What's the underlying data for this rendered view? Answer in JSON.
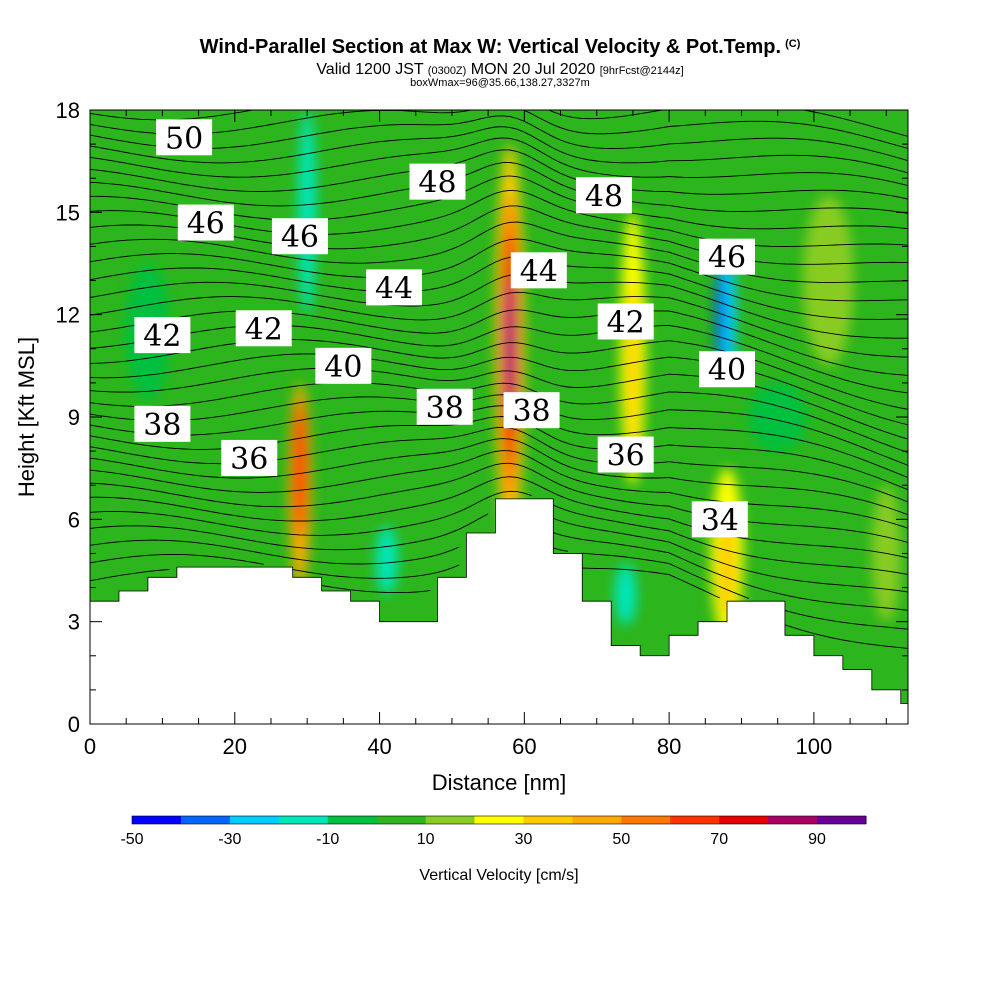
{
  "title": "Wind-Parallel Section at Max W: Vertical Velocity & Pot.Temp.",
  "title_mark": "(C)",
  "subtitle": {
    "valid_prefix": "Valid 1200 JST",
    "utc": "(0300Z)",
    "date": "MON 20 Jul 2020",
    "forecast": "[9hrFcst@2144z]"
  },
  "subtitle2": "boxWmax=96@35.66,138.27,3327m",
  "chart_data": {
    "type": "heatmap",
    "xlabel": "Distance [nm]",
    "ylabel": "Height [Kft MSL]",
    "xlim": [
      0,
      113
    ],
    "ylim": [
      0,
      18
    ],
    "x_ticks": [
      0,
      20,
      40,
      60,
      80,
      100
    ],
    "y_ticks": [
      0,
      3,
      6,
      9,
      12,
      15,
      18
    ],
    "colorbar": {
      "label": "Vertical Velocity [cm/s]",
      "levels": [
        -50,
        -40,
        -30,
        -20,
        -10,
        0,
        10,
        20,
        30,
        40,
        50,
        60,
        70,
        80,
        90,
        100
      ],
      "tick_labels": [
        -50,
        -30,
        -10,
        10,
        30,
        50,
        70,
        90
      ],
      "colors": [
        "#0000ff",
        "#0066ff",
        "#00ccff",
        "#00e6bb",
        "#00c040",
        "#2cb51c",
        "#88cc22",
        "#ffff00",
        "#ffcc00",
        "#ffaa00",
        "#ff7700",
        "#ff3300",
        "#e60000",
        "#aa0066",
        "#660099"
      ]
    },
    "terrain_kft": [
      [
        0,
        3.6
      ],
      [
        4,
        3.9
      ],
      [
        8,
        4.3
      ],
      [
        12,
        4.6
      ],
      [
        16,
        4.6
      ],
      [
        20,
        4.6
      ],
      [
        24,
        4.6
      ],
      [
        28,
        4.3
      ],
      [
        32,
        3.9
      ],
      [
        36,
        3.6
      ],
      [
        40,
        3.0
      ],
      [
        44,
        3.0
      ],
      [
        48,
        4.3
      ],
      [
        52,
        5.6
      ],
      [
        56,
        6.6
      ],
      [
        60,
        6.6
      ],
      [
        64,
        5.0
      ],
      [
        68,
        3.6
      ],
      [
        72,
        2.3
      ],
      [
        76,
        2.0
      ],
      [
        80,
        2.6
      ],
      [
        84,
        3.0
      ],
      [
        88,
        3.6
      ],
      [
        92,
        3.6
      ],
      [
        96,
        2.6
      ],
      [
        100,
        2.0
      ],
      [
        104,
        1.6
      ],
      [
        108,
        1.0
      ],
      [
        112,
        0.6
      ],
      [
        113,
        0.4
      ]
    ],
    "vertical_velocity_cells": [
      {
        "x": 29,
        "y": 7.0,
        "dx": 3,
        "dy": 6.0,
        "value": 40
      },
      {
        "x": 29,
        "y": 7.5,
        "dx": 1.8,
        "dy": 4.0,
        "value": 60
      },
      {
        "x": 58,
        "y": 11.0,
        "dx": 4,
        "dy": 12.0,
        "value": 30
      },
      {
        "x": 58,
        "y": 11.0,
        "dx": 2.8,
        "dy": 9.0,
        "value": 50
      },
      {
        "x": 58,
        "y": 11.0,
        "dx": 1.8,
        "dy": 7.0,
        "value": 70
      },
      {
        "x": 58,
        "y": 11.0,
        "dx": 0.9,
        "dy": 4.0,
        "value": 90
      },
      {
        "x": 75,
        "y": 11.0,
        "dx": 3.5,
        "dy": 8.0,
        "value": 20
      },
      {
        "x": 75,
        "y": 10.5,
        "dx": 1.6,
        "dy": 5.0,
        "value": 30
      },
      {
        "x": 88,
        "y": 5.0,
        "dx": 4.5,
        "dy": 5.0,
        "value": 20
      },
      {
        "x": 88,
        "y": 4.6,
        "dx": 2.5,
        "dy": 3.0,
        "value": 30
      },
      {
        "x": 88,
        "y": 12.0,
        "dx": 2.5,
        "dy": 4.0,
        "value": -30
      },
      {
        "x": 87,
        "y": 12.0,
        "dx": 1.0,
        "dy": 3.0,
        "value": -50
      },
      {
        "x": 30,
        "y": 15.0,
        "dx": 2.5,
        "dy": 6.0,
        "value": -20
      },
      {
        "x": 41,
        "y": 4.8,
        "dx": 3.0,
        "dy": 2.0,
        "value": -20
      },
      {
        "x": 74,
        "y": 3.8,
        "dx": 3.0,
        "dy": 1.8,
        "value": -20
      },
      {
        "x": 8,
        "y": 11.5,
        "dx": 6.0,
        "dy": 4.0,
        "value": -10
      },
      {
        "x": 102,
        "y": 13.0,
        "dx": 7.0,
        "dy": 5.0,
        "value": 10
      },
      {
        "x": 95,
        "y": 9.0,
        "dx": 8.0,
        "dy": 2.0,
        "value": -10
      },
      {
        "x": 110,
        "y": 5.0,
        "dx": 4.0,
        "dy": 4.0,
        "value": 10
      }
    ],
    "isentrope_labels": [
      {
        "x": 13,
        "y": 17.2,
        "text": "50"
      },
      {
        "x": 16,
        "y": 14.7,
        "text": "46"
      },
      {
        "x": 29,
        "y": 14.3,
        "text": "46"
      },
      {
        "x": 48,
        "y": 15.9,
        "text": "48"
      },
      {
        "x": 71,
        "y": 15.5,
        "text": "48"
      },
      {
        "x": 42,
        "y": 12.8,
        "text": "44"
      },
      {
        "x": 62,
        "y": 13.3,
        "text": "44"
      },
      {
        "x": 88,
        "y": 13.7,
        "text": "46"
      },
      {
        "x": 10,
        "y": 11.4,
        "text": "42"
      },
      {
        "x": 24,
        "y": 11.6,
        "text": "42"
      },
      {
        "x": 74,
        "y": 11.8,
        "text": "42"
      },
      {
        "x": 35,
        "y": 10.5,
        "text": "40"
      },
      {
        "x": 88,
        "y": 10.4,
        "text": "40"
      },
      {
        "x": 10,
        "y": 8.8,
        "text": "38"
      },
      {
        "x": 49,
        "y": 9.3,
        "text": "38"
      },
      {
        "x": 61,
        "y": 9.2,
        "text": "38"
      },
      {
        "x": 22,
        "y": 7.8,
        "text": "36"
      },
      {
        "x": 74,
        "y": 7.9,
        "text": "36"
      },
      {
        "x": 87,
        "y": 6.0,
        "text": "34"
      }
    ]
  }
}
